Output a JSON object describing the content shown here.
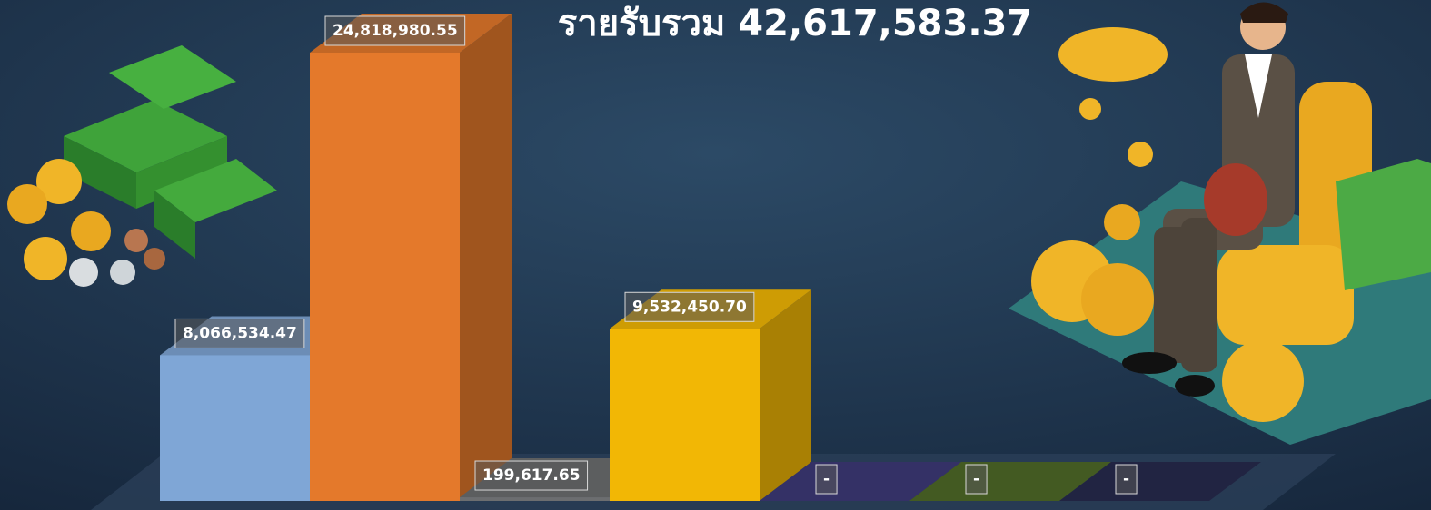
{
  "chart_data": {
    "type": "bar",
    "title": "รายรับรวม 42,617,583.37",
    "categories": [
      null,
      null,
      null,
      null,
      null,
      null,
      null
    ],
    "values": [
      8066534.47,
      24818980.55,
      199617.65,
      9532450.7,
      0,
      0,
      0
    ],
    "value_labels": [
      "8,066,534.47",
      "24,818,980.55",
      "199,617.65",
      "9,532,450.70",
      "-",
      "-",
      "-"
    ],
    "colors": [
      "#7fa6d6",
      "#e4792b",
      "#6c6e70",
      "#f2b705",
      "#3d3a78",
      "#4f6a28",
      "#272a4e"
    ]
  }
}
